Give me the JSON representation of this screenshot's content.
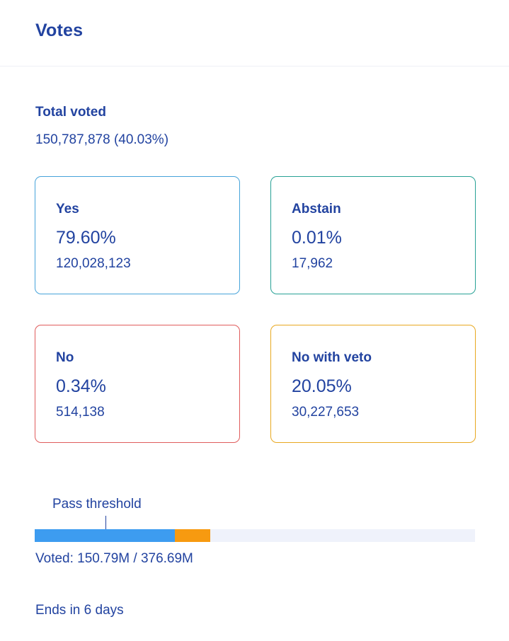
{
  "header": {
    "title": "Votes"
  },
  "total": {
    "label": "Total voted",
    "value": "150,787,878 (40.03%)"
  },
  "cards": {
    "yes": {
      "label": "Yes",
      "percent": "79.60%",
      "count": "120,028,123",
      "color": "#46a3da"
    },
    "abstain": {
      "label": "Abstain",
      "percent": "0.01%",
      "count": "17,962",
      "color": "#27a195"
    },
    "no": {
      "label": "No",
      "percent": "0.34%",
      "count": "514,138",
      "color": "#e05c5c"
    },
    "veto": {
      "label": "No with veto",
      "percent": "20.05%",
      "count": "30,227,653",
      "color": "#e8a820"
    }
  },
  "progress": {
    "threshold_label": "Pass threshold",
    "threshold_fraction": 0.16,
    "segments": [
      {
        "name": "yes",
        "fraction": 0.319,
        "color": "#3d9cf0"
      },
      {
        "name": "veto",
        "fraction": 0.08,
        "color": "#f79a10"
      }
    ],
    "track_color": "#eff2fb",
    "voted_text": "Voted: 150.79M / 376.69M"
  },
  "footer": {
    "ends_text": "Ends in 6 days"
  }
}
